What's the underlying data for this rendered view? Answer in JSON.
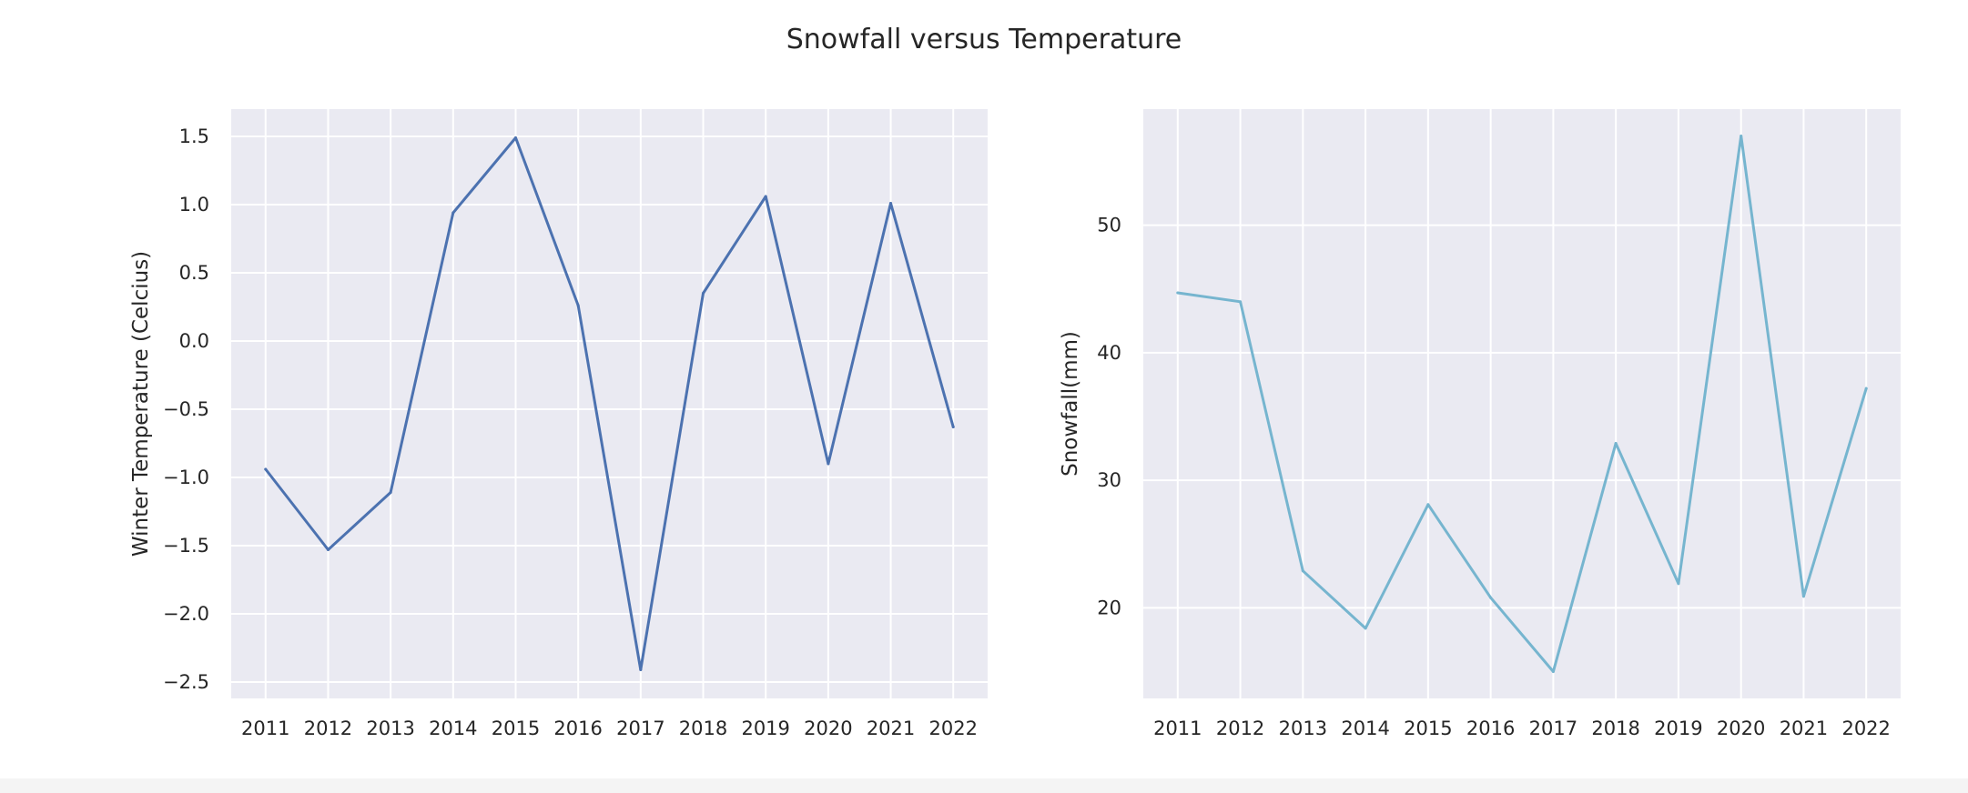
{
  "figure": {
    "title": "Snowfall versus Temperature"
  },
  "chart_data": [
    {
      "type": "line",
      "title": "",
      "xlabel": "",
      "ylabel": "Winter Temperature (Celcius)",
      "x": [
        2011,
        2012,
        2013,
        2014,
        2015,
        2016,
        2017,
        2018,
        2019,
        2020,
        2021,
        2022
      ],
      "x_tick_labels": [
        "2011",
        "2012",
        "2013",
        "2014",
        "2015",
        "2016",
        "2017",
        "2018",
        "2019",
        "2020",
        "2021",
        "2022"
      ],
      "y": [
        -0.94,
        -1.53,
        -1.11,
        0.94,
        1.49,
        0.26,
        -2.41,
        0.35,
        1.06,
        -0.9,
        1.01,
        -0.63
      ],
      "ylim": [
        -2.62,
        1.7
      ],
      "y_ticks": [
        1.5,
        1.0,
        0.5,
        0.0,
        -0.5,
        -1.0,
        -1.5,
        -2.0,
        -2.5
      ],
      "y_tick_labels": [
        "1.5",
        "1.0",
        "0.5",
        "0.0",
        "−0.5",
        "−1.0",
        "−1.5",
        "−2.0",
        "−2.5"
      ],
      "grid": true,
      "color": "#4c72b0",
      "background": "#eaeaf2"
    },
    {
      "type": "line",
      "title": "",
      "xlabel": "",
      "ylabel": "Snowfall(mm)",
      "x": [
        2011,
        2012,
        2013,
        2014,
        2015,
        2016,
        2017,
        2018,
        2019,
        2020,
        2021,
        2022
      ],
      "x_tick_labels": [
        "2011",
        "2012",
        "2013",
        "2014",
        "2015",
        "2016",
        "2017",
        "2018",
        "2019",
        "2020",
        "2021",
        "2022"
      ],
      "y": [
        44.7,
        44.0,
        22.9,
        18.4,
        28.1,
        20.8,
        15.0,
        32.9,
        21.9,
        57.0,
        20.9,
        37.2
      ],
      "ylim": [
        12.9,
        59.1
      ],
      "y_ticks": [
        50,
        40,
        30,
        20
      ],
      "y_tick_labels": [
        "50",
        "40",
        "30",
        "20"
      ],
      "grid": true,
      "color": "#76b5cf",
      "background": "#eaeaf2"
    }
  ]
}
